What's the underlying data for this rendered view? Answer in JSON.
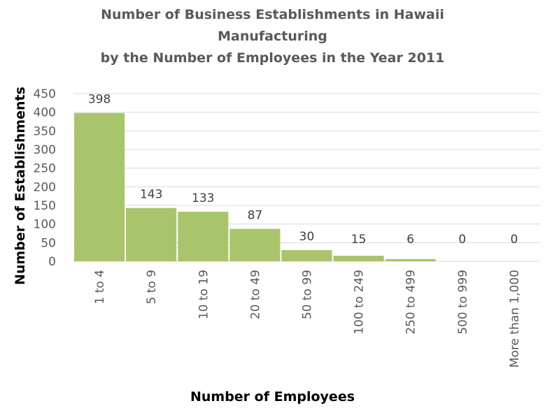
{
  "chart_data": {
    "type": "bar",
    "title_lines": [
      "Number of Business Establishments in Hawaii",
      "Manufacturing",
      "by the Number of Employees in the Year 2011"
    ],
    "xlabel": "Number of Employees",
    "ylabel": "Number of Establishments",
    "categories": [
      "1 to 4",
      "5 to 9",
      "10 to 19",
      "20 to 49",
      "50 to 99",
      "100 to 249",
      "250 to 499",
      "500 to 999",
      "More than 1,000"
    ],
    "values": [
      398,
      143,
      133,
      87,
      30,
      15,
      6,
      0,
      0
    ],
    "data_labels": [
      "398",
      "143",
      "133",
      "87",
      "30",
      "15",
      "6",
      "0",
      "0"
    ],
    "ylim": [
      0,
      450
    ],
    "yticks": [
      0,
      50,
      100,
      150,
      200,
      250,
      300,
      350,
      400,
      450
    ],
    "grid": true,
    "legend": "none",
    "colors": {
      "bar": "#a9c56b",
      "grid": "#d9d9d9"
    }
  }
}
